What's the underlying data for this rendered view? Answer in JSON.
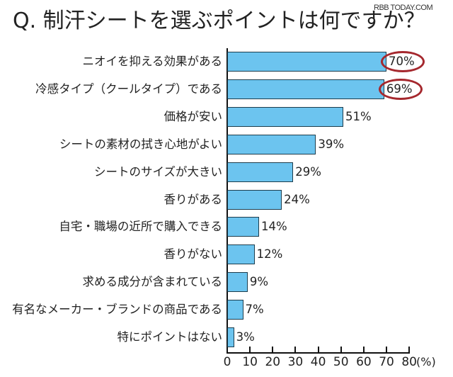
{
  "title": "Q. 制汗シートを選ぶポイントは何ですか？",
  "watermark": "RBB TODAY.COM",
  "colors": {
    "bar": "#6cc4ef",
    "bar_border": "#1d3d4d",
    "highlight_circle": "#a5282e"
  },
  "chart_data": {
    "type": "bar",
    "orientation": "horizontal",
    "title": "Q. 制汗シートを選ぶポイントは何ですか？",
    "categories": [
      "ニオイを抑える効果がある",
      "冷感タイプ（クールタイプ）である",
      "価格が安い",
      "シートの素材の拭き心地がよい",
      "シートのサイズが大きい",
      "香りがある",
      "自宅・職場の近所で購入できる",
      "香りがない",
      "求める成分が含まれている",
      "有名なメーカー・ブランドの商品である",
      "特にポイントはない"
    ],
    "values": [
      70,
      69,
      51,
      39,
      29,
      24,
      14,
      12,
      9,
      7,
      3
    ],
    "value_labels": [
      "70%",
      "69%",
      "51%",
      "39%",
      "29%",
      "24%",
      "14%",
      "12%",
      "9%",
      "7%",
      "3%"
    ],
    "highlighted": [
      "70%",
      "69%"
    ],
    "xlabel": "(%)",
    "ylabel": "",
    "xlim": [
      0,
      80
    ],
    "xticks": [
      "0",
      "10",
      "20",
      "30",
      "40",
      "50",
      "60",
      "70",
      "80"
    ],
    "grid": false,
    "legend": null
  }
}
